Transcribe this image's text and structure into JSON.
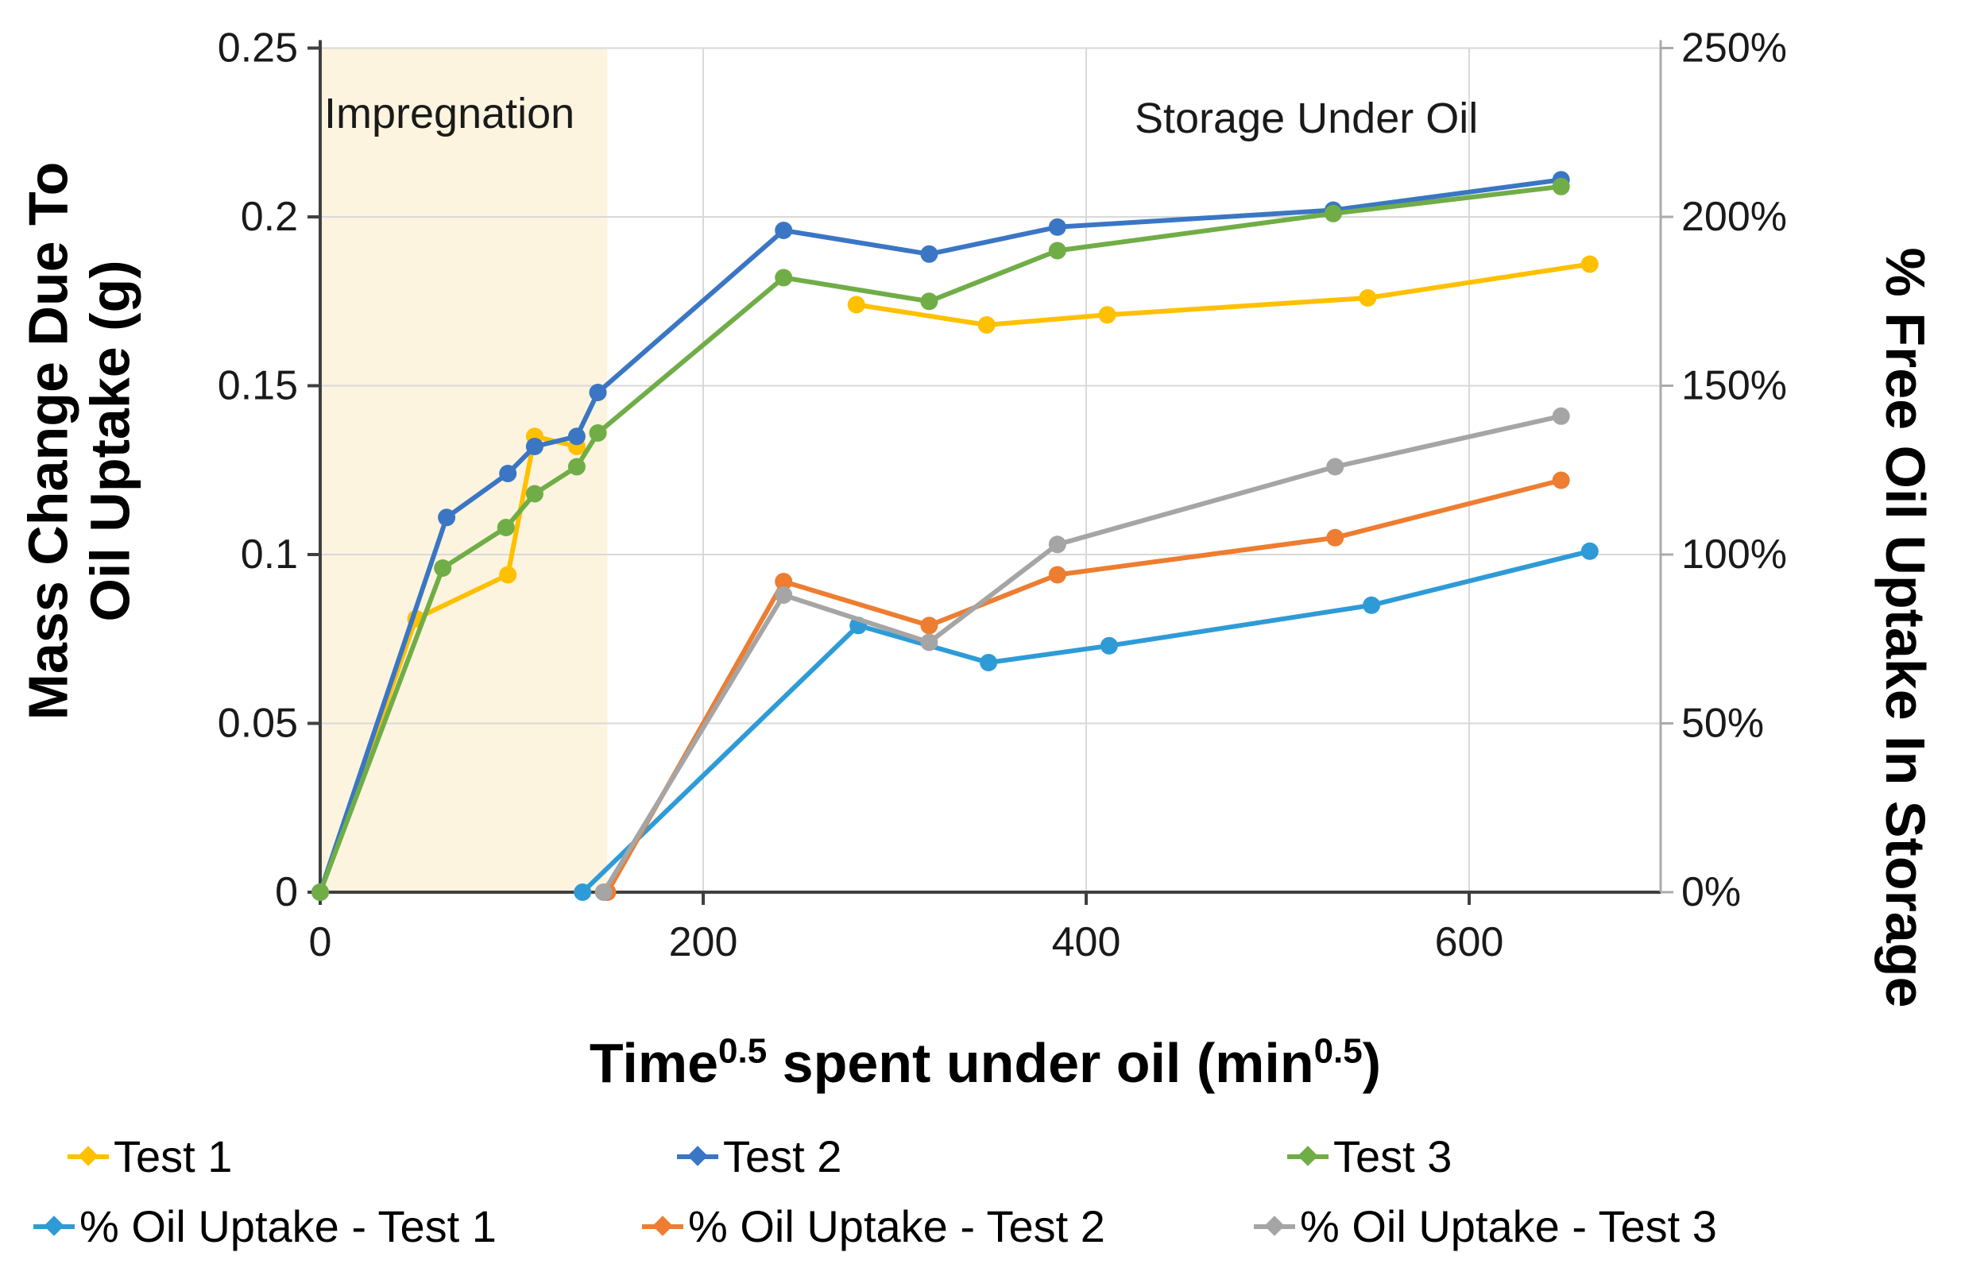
{
  "chart_data": {
    "type": "line",
    "xlabel_parts": {
      "t1": "Time",
      "sup1": "0.5",
      "t2": " spent under oil (min",
      "sup2": "0.5",
      "t3": ")"
    },
    "ylabel_left_line1": "Mass Change Due To",
    "ylabel_left_line2": "Oil Uptake  (g)",
    "ylabel_right": "% Free Oil Uptake In Storage",
    "annotations": {
      "impregnation": "Impregnation",
      "storage": "Storage Under Oil"
    },
    "xlim": [
      0,
      700
    ],
    "ylim_left": [
      0,
      0.25
    ],
    "ylim_right": [
      0,
      250
    ],
    "grid": true,
    "legend_position": "bottom",
    "x_ticks": [
      {
        "value": 0,
        "label": "0"
      },
      {
        "value": 200,
        "label": "200"
      },
      {
        "value": 400,
        "label": "400"
      },
      {
        "value": 600,
        "label": "600"
      }
    ],
    "y_ticks_left": [
      {
        "value": 0,
        "label": "0"
      },
      {
        "value": 0.05,
        "label": "0.05"
      },
      {
        "value": 0.1,
        "label": "0.1"
      },
      {
        "value": 0.15,
        "label": "0.15"
      },
      {
        "value": 0.2,
        "label": "0.2"
      },
      {
        "value": 0.25,
        "label": "0.25"
      }
    ],
    "y_ticks_right": [
      {
        "value": 0,
        "label": "0%"
      },
      {
        "value": 50,
        "label": "50%"
      },
      {
        "value": 100,
        "label": "100%"
      },
      {
        "value": 150,
        "label": "150%"
      },
      {
        "value": 200,
        "label": "200%"
      },
      {
        "value": 250,
        "label": "250%"
      }
    ],
    "impregnation_band": {
      "x0": 0,
      "x1": 150,
      "color": "#FCF4DF"
    },
    "series": [
      {
        "name": "Test 1",
        "axis": "left",
        "color": "#FFC000",
        "segments": [
          [
            [
              0,
              0
            ],
            [
              50,
              0.081
            ],
            [
              98,
              0.094
            ],
            [
              112,
              0.135
            ],
            [
              134,
              0.132
            ]
          ],
          [
            [
              280,
              0.174
            ],
            [
              348,
              0.168
            ],
            [
              411,
              0.171
            ],
            [
              547,
              0.176
            ],
            [
              663,
              0.186
            ]
          ]
        ]
      },
      {
        "name": "Test 2",
        "axis": "left",
        "color": "#3A76C4",
        "segments": [
          [
            [
              0,
              0
            ],
            [
              66,
              0.111
            ],
            [
              98,
              0.124
            ],
            [
              112,
              0.132
            ],
            [
              134,
              0.135
            ],
            [
              145,
              0.148
            ],
            [
              242,
              0.196
            ],
            [
              318,
              0.189
            ],
            [
              385,
              0.197
            ],
            [
              529,
              0.202
            ],
            [
              648,
              0.211
            ]
          ]
        ]
      },
      {
        "name": "Test 3",
        "axis": "left",
        "color": "#70AD47",
        "segments": [
          [
            [
              0,
              0
            ],
            [
              64,
              0.096
            ],
            [
              97,
              0.108
            ],
            [
              112,
              0.118
            ],
            [
              134,
              0.126
            ],
            [
              145,
              0.136
            ],
            [
              242,
              0.182
            ],
            [
              318,
              0.175
            ],
            [
              385,
              0.19
            ],
            [
              529,
              0.201
            ],
            [
              648,
              0.209
            ]
          ]
        ]
      },
      {
        "name": "% Oil Uptake - Test 1",
        "axis": "right",
        "color": "#2E9BD6",
        "segments": [
          [
            [
              137,
              0
            ],
            [
              281,
              79
            ],
            [
              349,
              68
            ],
            [
              412,
              73
            ],
            [
              549,
              85
            ],
            [
              663,
              101
            ]
          ]
        ]
      },
      {
        "name": "% Oil Uptake - Test 2",
        "axis": "right",
        "color": "#ED7D31",
        "segments": [
          [
            [
              150,
              0
            ],
            [
              242,
              92
            ],
            [
              318,
              79
            ],
            [
              385,
              94
            ],
            [
              530,
              105
            ],
            [
              648,
              122
            ]
          ]
        ]
      },
      {
        "name": "% Oil Uptake - Test 3",
        "axis": "right",
        "color": "#A5A5A5",
        "segments": [
          [
            [
              148,
              0
            ],
            [
              242,
              88
            ],
            [
              318,
              74
            ],
            [
              385,
              103
            ],
            [
              530,
              126
            ],
            [
              648,
              141
            ]
          ]
        ]
      }
    ],
    "colors": {
      "gridline": "#D9D9D9",
      "axis": "#404040",
      "right_axis": "#ABABAB",
      "tick_label": "#1a1a1a"
    }
  }
}
